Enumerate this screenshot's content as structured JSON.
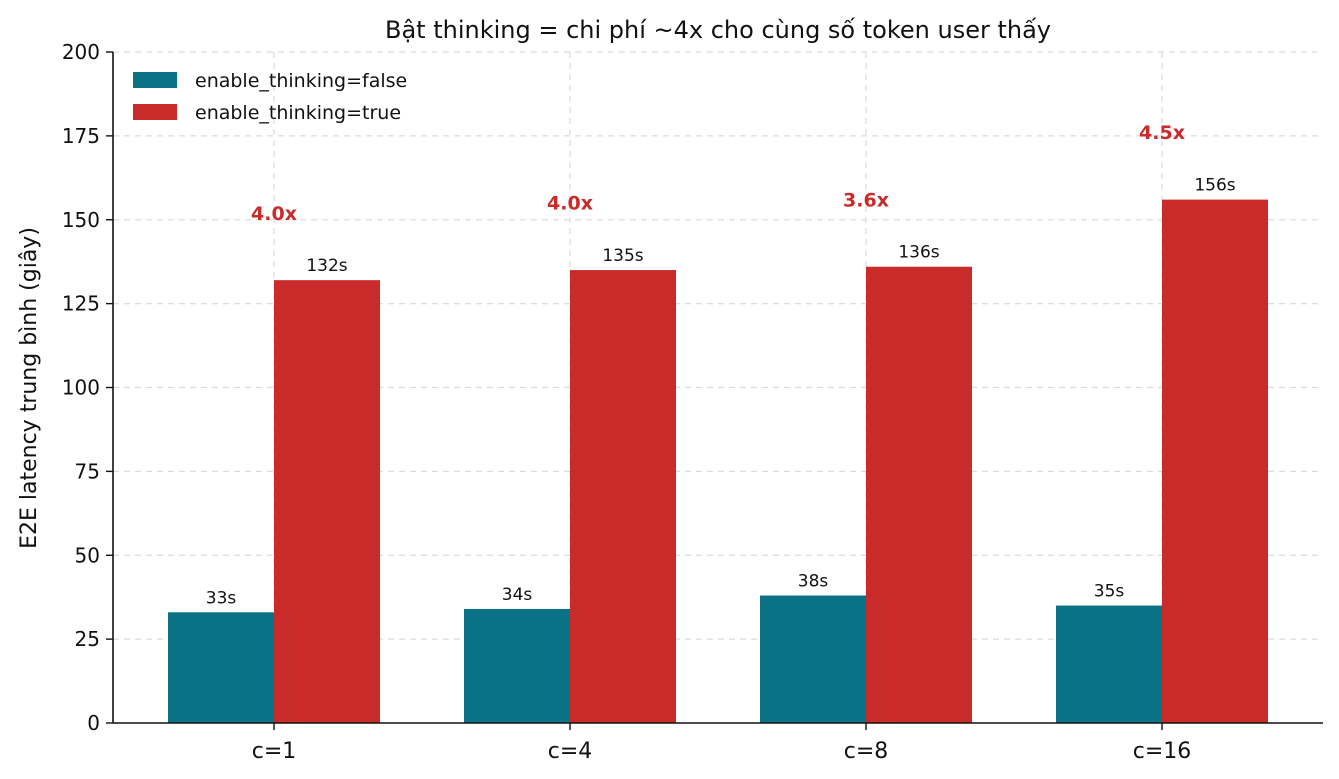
{
  "chart_data": {
    "type": "bar",
    "title": "Bật thinking = chi phí ~4x cho cùng số token user thấy",
    "xlabel": "",
    "ylabel": "E2E latency trung bình (giây)",
    "categories": [
      "c=1",
      "c=4",
      "c=8",
      "c=16"
    ],
    "ylim": [
      0,
      200
    ],
    "yticks": [
      0,
      25,
      50,
      75,
      100,
      125,
      150,
      175,
      200
    ],
    "grid": true,
    "legend_position": "top-left",
    "series": [
      {
        "name": "enable_thinking=false",
        "color": "#0b7285",
        "values": [
          33,
          34,
          38,
          35
        ],
        "labels": [
          "33s",
          "34s",
          "38s",
          "35s"
        ]
      },
      {
        "name": "enable_thinking=true",
        "color": "#c92a2a",
        "values": [
          132,
          135,
          136,
          156
        ],
        "labels": [
          "132s",
          "135s",
          "136s",
          "156s"
        ]
      }
    ],
    "ratio_annotations": {
      "color": "#c92a2a",
      "labels": [
        "4.0x",
        "4.0x",
        "3.6x",
        "4.5x"
      ],
      "values": [
        4.0,
        4.0,
        3.6,
        4.5
      ]
    }
  }
}
